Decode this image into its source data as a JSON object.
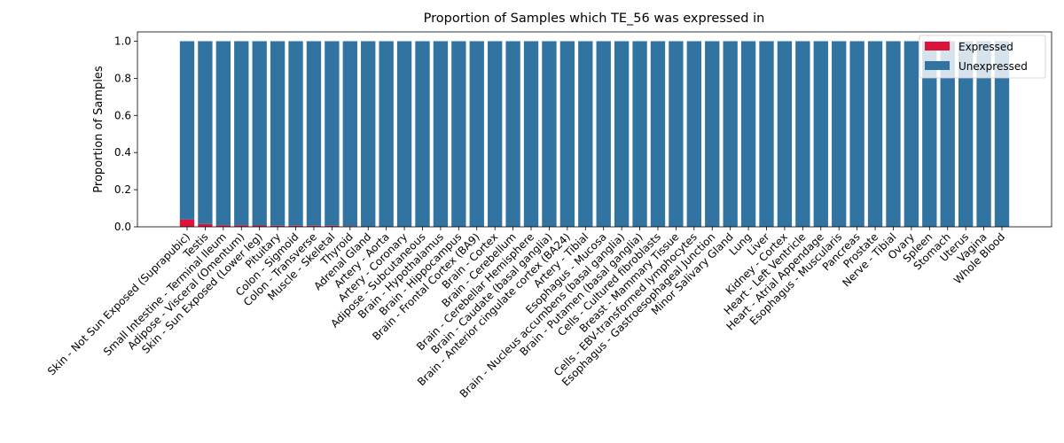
{
  "chart_data": {
    "type": "bar",
    "stacked": true,
    "title": "Proportion of Samples which TE_56 was expressed in",
    "xlabel": "",
    "ylabel": "Proportion of Samples",
    "ylim": [
      0,
      1.05
    ],
    "yticks": [
      "0.0",
      "0.2",
      "0.4",
      "0.6",
      "0.8",
      "1.0"
    ],
    "grid": false,
    "legend_position": "top-right",
    "categories": [
      "Skin - Not Sun Exposed (Suprapubic)",
      "Testis",
      "Small Intestine - Terminal Ileum",
      "Adipose - Visceral (Omentum)",
      "Skin - Sun Exposed (Lower leg)",
      "Pituitary",
      "Colon - Sigmoid",
      "Colon - Transverse",
      "Muscle - Skeletal",
      "Thyroid",
      "Adrenal Gland",
      "Artery - Aorta",
      "Artery - Coronary",
      "Adipose - Subcutaneous",
      "Brain - Hypothalamus",
      "Brain - Hippocampus",
      "Brain - Frontal Cortex (BA9)",
      "Brain - Cortex",
      "Brain - Cerebellum",
      "Brain - Cerebellar Hemisphere",
      "Brain - Caudate (basal ganglia)",
      "Brain - Anterior cingulate cortex (BA24)",
      "Artery - Tibial",
      "Esophagus - Mucosa",
      "Brain - Nucleus accumbens (basal ganglia)",
      "Brain - Putamen (basal ganglia)",
      "Cells - Cultured fibroblasts",
      "Breast - Mammary Tissue",
      "Cells - EBV-transformed lymphocytes",
      "Esophagus - Gastroesophageal Junction",
      "Minor Salivary Gland",
      "Lung",
      "Liver",
      "Kidney - Cortex",
      "Heart - Left Ventricle",
      "Heart - Atrial Appendage",
      "Esophagus - Muscularis",
      "Pancreas",
      "Prostate",
      "Nerve - Tibial",
      "Ovary",
      "Spleen",
      "Stomach",
      "Uterus",
      "Vagina",
      "Whole Blood"
    ],
    "series": [
      {
        "name": "Expressed",
        "color": "#dc143c",
        "values": [
          0.04,
          0.015,
          0.008,
          0.008,
          0.007,
          0.006,
          0.006,
          0.006,
          0.006,
          0.004,
          0,
          0,
          0,
          0,
          0,
          0,
          0,
          0,
          0,
          0,
          0,
          0,
          0,
          0,
          0,
          0,
          0,
          0,
          0,
          0,
          0,
          0,
          0,
          0,
          0,
          0,
          0,
          0,
          0,
          0,
          0,
          0,
          0,
          0,
          0,
          0
        ]
      },
      {
        "name": "Unexpressed",
        "color": "#3274a1",
        "values": [
          0.96,
          0.985,
          0.992,
          0.992,
          0.993,
          0.994,
          0.994,
          0.994,
          0.994,
          0.996,
          1,
          1,
          1,
          1,
          1,
          1,
          1,
          1,
          1,
          1,
          1,
          1,
          1,
          1,
          1,
          1,
          1,
          1,
          1,
          1,
          1,
          1,
          1,
          1,
          1,
          1,
          1,
          1,
          1,
          1,
          1,
          1,
          1,
          1,
          1,
          1
        ]
      }
    ]
  }
}
